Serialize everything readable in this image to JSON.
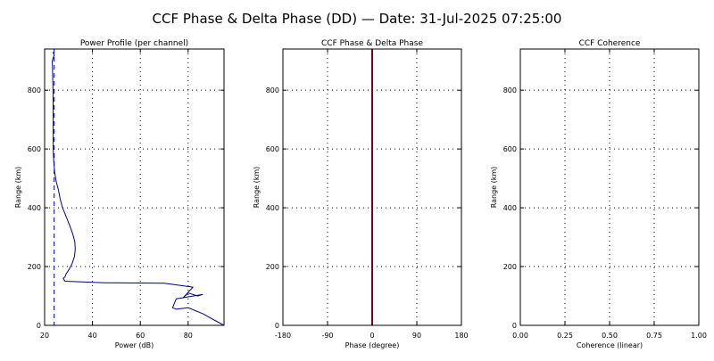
{
  "figure": {
    "title": "CCF Phase & Delta Phase (DD) — Date: 31-Jul-2025 07:25:00"
  },
  "chart_data": [
    {
      "type": "line",
      "title": "Power Profile (per channel)",
      "xlabel": "Power (dB)",
      "ylabel": "Range (km)",
      "xlim": [
        20,
        95
      ],
      "ylim": [
        0,
        940
      ],
      "xticks": [
        20,
        40,
        60,
        80
      ],
      "yticks": [
        0,
        200,
        400,
        600,
        800
      ],
      "grid": true,
      "series": [
        {
          "style": "solid",
          "color": "#00008b",
          "x": [
            23.5,
            24,
            23.2,
            23.5,
            23.6,
            23.6,
            23.8,
            24.2,
            24.8,
            25.8,
            26.5,
            27.5,
            29,
            30.5,
            31.8,
            32.6,
            32.8,
            32.5,
            31.5,
            30.2,
            29,
            28.5,
            27.8,
            28.5,
            45,
            70,
            82,
            78,
            80,
            84,
            86,
            75,
            73.5,
            75,
            80,
            83,
            86,
            95
          ],
          "y": [
            930,
            920,
            900,
            800,
            700,
            600,
            560,
            520,
            490,
            460,
            430,
            400,
            370,
            340,
            310,
            285,
            260,
            235,
            210,
            190,
            175,
            165,
            160,
            150,
            145,
            143,
            130,
            95,
            110,
            100,
            105,
            90,
            60,
            55,
            60,
            50,
            40,
            0
          ]
        },
        {
          "style": "dashed",
          "color": "#00008b",
          "x": [
            24,
            24,
            24,
            24,
            24,
            24,
            24
          ],
          "y": [
            940,
            800,
            600,
            400,
            200,
            100,
            0
          ]
        }
      ]
    },
    {
      "type": "line",
      "title": "CCF Phase & Delta Phase",
      "xlabel": "Phase (degree)",
      "ylabel": "Range (km)",
      "xlim": [
        -180,
        180
      ],
      "ylim": [
        0,
        940
      ],
      "xticks": [
        -180,
        -90,
        0,
        90,
        180
      ],
      "yticks": [
        0,
        200,
        400,
        600,
        800
      ],
      "grid": true,
      "series": [
        {
          "style": "solid",
          "color": "#800020",
          "x": [
            0,
            0
          ],
          "y": [
            0,
            940
          ]
        }
      ]
    },
    {
      "type": "line",
      "title": "CCF Coherence",
      "xlabel": "Coherence (linear)",
      "ylabel": "Range (km)",
      "xlim": [
        0,
        1
      ],
      "ylim": [
        0,
        940
      ],
      "xticks": [
        0.0,
        0.25,
        0.5,
        0.75,
        1.0
      ],
      "xtick_labels": [
        "0.00",
        "0.25",
        "0.50",
        "0.75",
        "1.00"
      ],
      "yticks": [
        0,
        200,
        400,
        600,
        800
      ],
      "grid": true,
      "series": []
    }
  ]
}
